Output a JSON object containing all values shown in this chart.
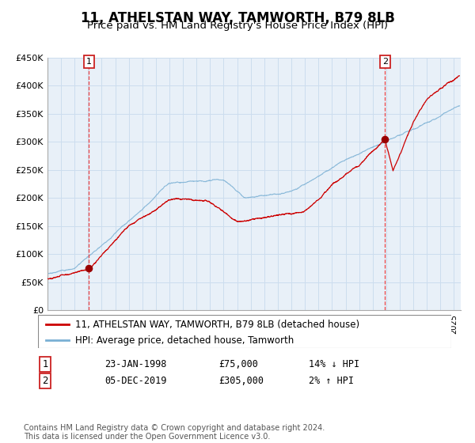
{
  "title": "11, ATHELSTAN WAY, TAMWORTH, B79 8LB",
  "subtitle": "Price paid vs. HM Land Registry's House Price Index (HPI)",
  "ylim": [
    0,
    450000
  ],
  "yticks": [
    0,
    50000,
    100000,
    150000,
    200000,
    250000,
    300000,
    350000,
    400000,
    450000
  ],
  "ytick_labels": [
    "£0",
    "£50K",
    "£100K",
    "£150K",
    "£200K",
    "£250K",
    "£300K",
    "£350K",
    "£400K",
    "£450K"
  ],
  "xlim_start": 1995.0,
  "xlim_end": 2025.5,
  "sale1_date": 1998.06,
  "sale1_price": 75000,
  "sale1_label": "23-JAN-1998",
  "sale1_hpi_text": "14% ↓ HPI",
  "sale2_date": 2019.92,
  "sale2_price": 305000,
  "sale2_label": "05-DEC-2019",
  "sale2_hpi_text": "2% ↑ HPI",
  "red_line_color": "#cc0000",
  "blue_line_color": "#7ab0d4",
  "marker_color": "#990000",
  "vline_color": "#ee4444",
  "grid_color": "#ccddee",
  "plot_bg_color": "#e8f0f8",
  "background_color": "#ffffff",
  "legend_label_red": "11, ATHELSTAN WAY, TAMWORTH, B79 8LB (detached house)",
  "legend_label_blue": "HPI: Average price, detached house, Tamworth",
  "footer_text": "Contains HM Land Registry data © Crown copyright and database right 2024.\nThis data is licensed under the Open Government Licence v3.0.",
  "annotation_box_color": "#cc2222",
  "title_fontsize": 12,
  "subtitle_fontsize": 9.5,
  "tick_fontsize": 8,
  "legend_fontsize": 8.5,
  "footer_fontsize": 7
}
